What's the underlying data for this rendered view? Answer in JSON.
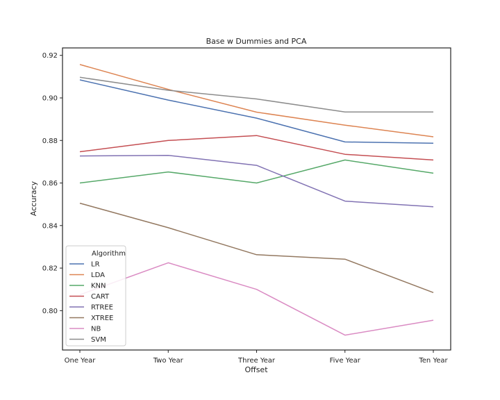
{
  "chart_data": {
    "type": "line",
    "title": "Base w Dummies and PCA",
    "xlabel": "Offset",
    "ylabel": "Accuracy",
    "categories": [
      "One Year",
      "Two Year",
      "Three Year",
      "Five Year",
      "Ten Year"
    ],
    "ylim": [
      0.7815,
      0.9235
    ],
    "yticks": [
      0.8,
      0.82,
      0.84,
      0.86,
      0.88,
      0.9,
      0.92
    ],
    "ytick_labels": [
      "0.80",
      "0.82",
      "0.84",
      "0.86",
      "0.88",
      "0.90",
      "0.92"
    ],
    "grid": false,
    "legend": {
      "title": "Algorithm",
      "placement": "lower-left"
    },
    "series": [
      {
        "name": "LR",
        "color": "#4c72b0",
        "values": [
          0.9085,
          0.899,
          0.8905,
          0.8793,
          0.8787
        ]
      },
      {
        "name": "LDA",
        "color": "#dd8452",
        "values": [
          0.9157,
          0.904,
          0.8933,
          0.8872,
          0.8817
        ]
      },
      {
        "name": "KNN",
        "color": "#55a868",
        "values": [
          0.86,
          0.8652,
          0.86,
          0.8708,
          0.8646
        ]
      },
      {
        "name": "CART",
        "color": "#c44e52",
        "values": [
          0.8747,
          0.88,
          0.8823,
          0.8735,
          0.8708
        ]
      },
      {
        "name": "RTREE",
        "color": "#8172b3",
        "values": [
          0.8727,
          0.873,
          0.8683,
          0.8515,
          0.8488
        ]
      },
      {
        "name": "XTREE",
        "color": "#937860",
        "values": [
          0.8505,
          0.839,
          0.8263,
          0.8242,
          0.8085
        ]
      },
      {
        "name": "NB",
        "color": "#da8bc3",
        "values": [
          0.8075,
          0.8225,
          0.81,
          0.7885,
          0.7955
        ]
      },
      {
        "name": "SVM",
        "color": "#8c8c8c",
        "values": [
          0.9097,
          0.9036,
          0.8995,
          0.8934,
          0.8934
        ]
      }
    ]
  }
}
